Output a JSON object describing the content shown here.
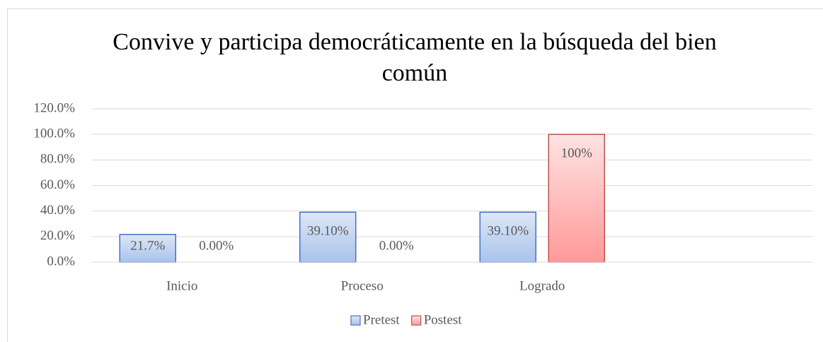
{
  "chart_data": {
    "type": "bar",
    "title": "Convive y participa democráticamente en la búsqueda del bien común",
    "categories": [
      "Inicio",
      "Proceso",
      "Logrado",
      null
    ],
    "series": [
      {
        "name": "Pretest",
        "color": "#4472c4",
        "values": [
          21.7,
          39.1,
          39.1,
          null
        ],
        "value_labels": [
          "21.7%",
          "39.10%",
          "39.10%",
          null
        ]
      },
      {
        "name": "Postest",
        "color": "#c0504d",
        "values": [
          0,
          0,
          100,
          null
        ],
        "value_labels": [
          "0.00%",
          "0.00%",
          "100%",
          null
        ]
      }
    ],
    "ylim": [
      0,
      120
    ],
    "yticks": [
      {
        "value": 0,
        "label": "0.0%"
      },
      {
        "value": 20,
        "label": "20.0%"
      },
      {
        "value": 40,
        "label": "40.0%"
      },
      {
        "value": 60,
        "label": "60.0%"
      },
      {
        "value": 80,
        "label": "80.0%"
      },
      {
        "value": 100,
        "label": "100.0%"
      },
      {
        "value": 120,
        "label": "120.0%"
      }
    ],
    "grid": true,
    "legend": "bottom"
  }
}
